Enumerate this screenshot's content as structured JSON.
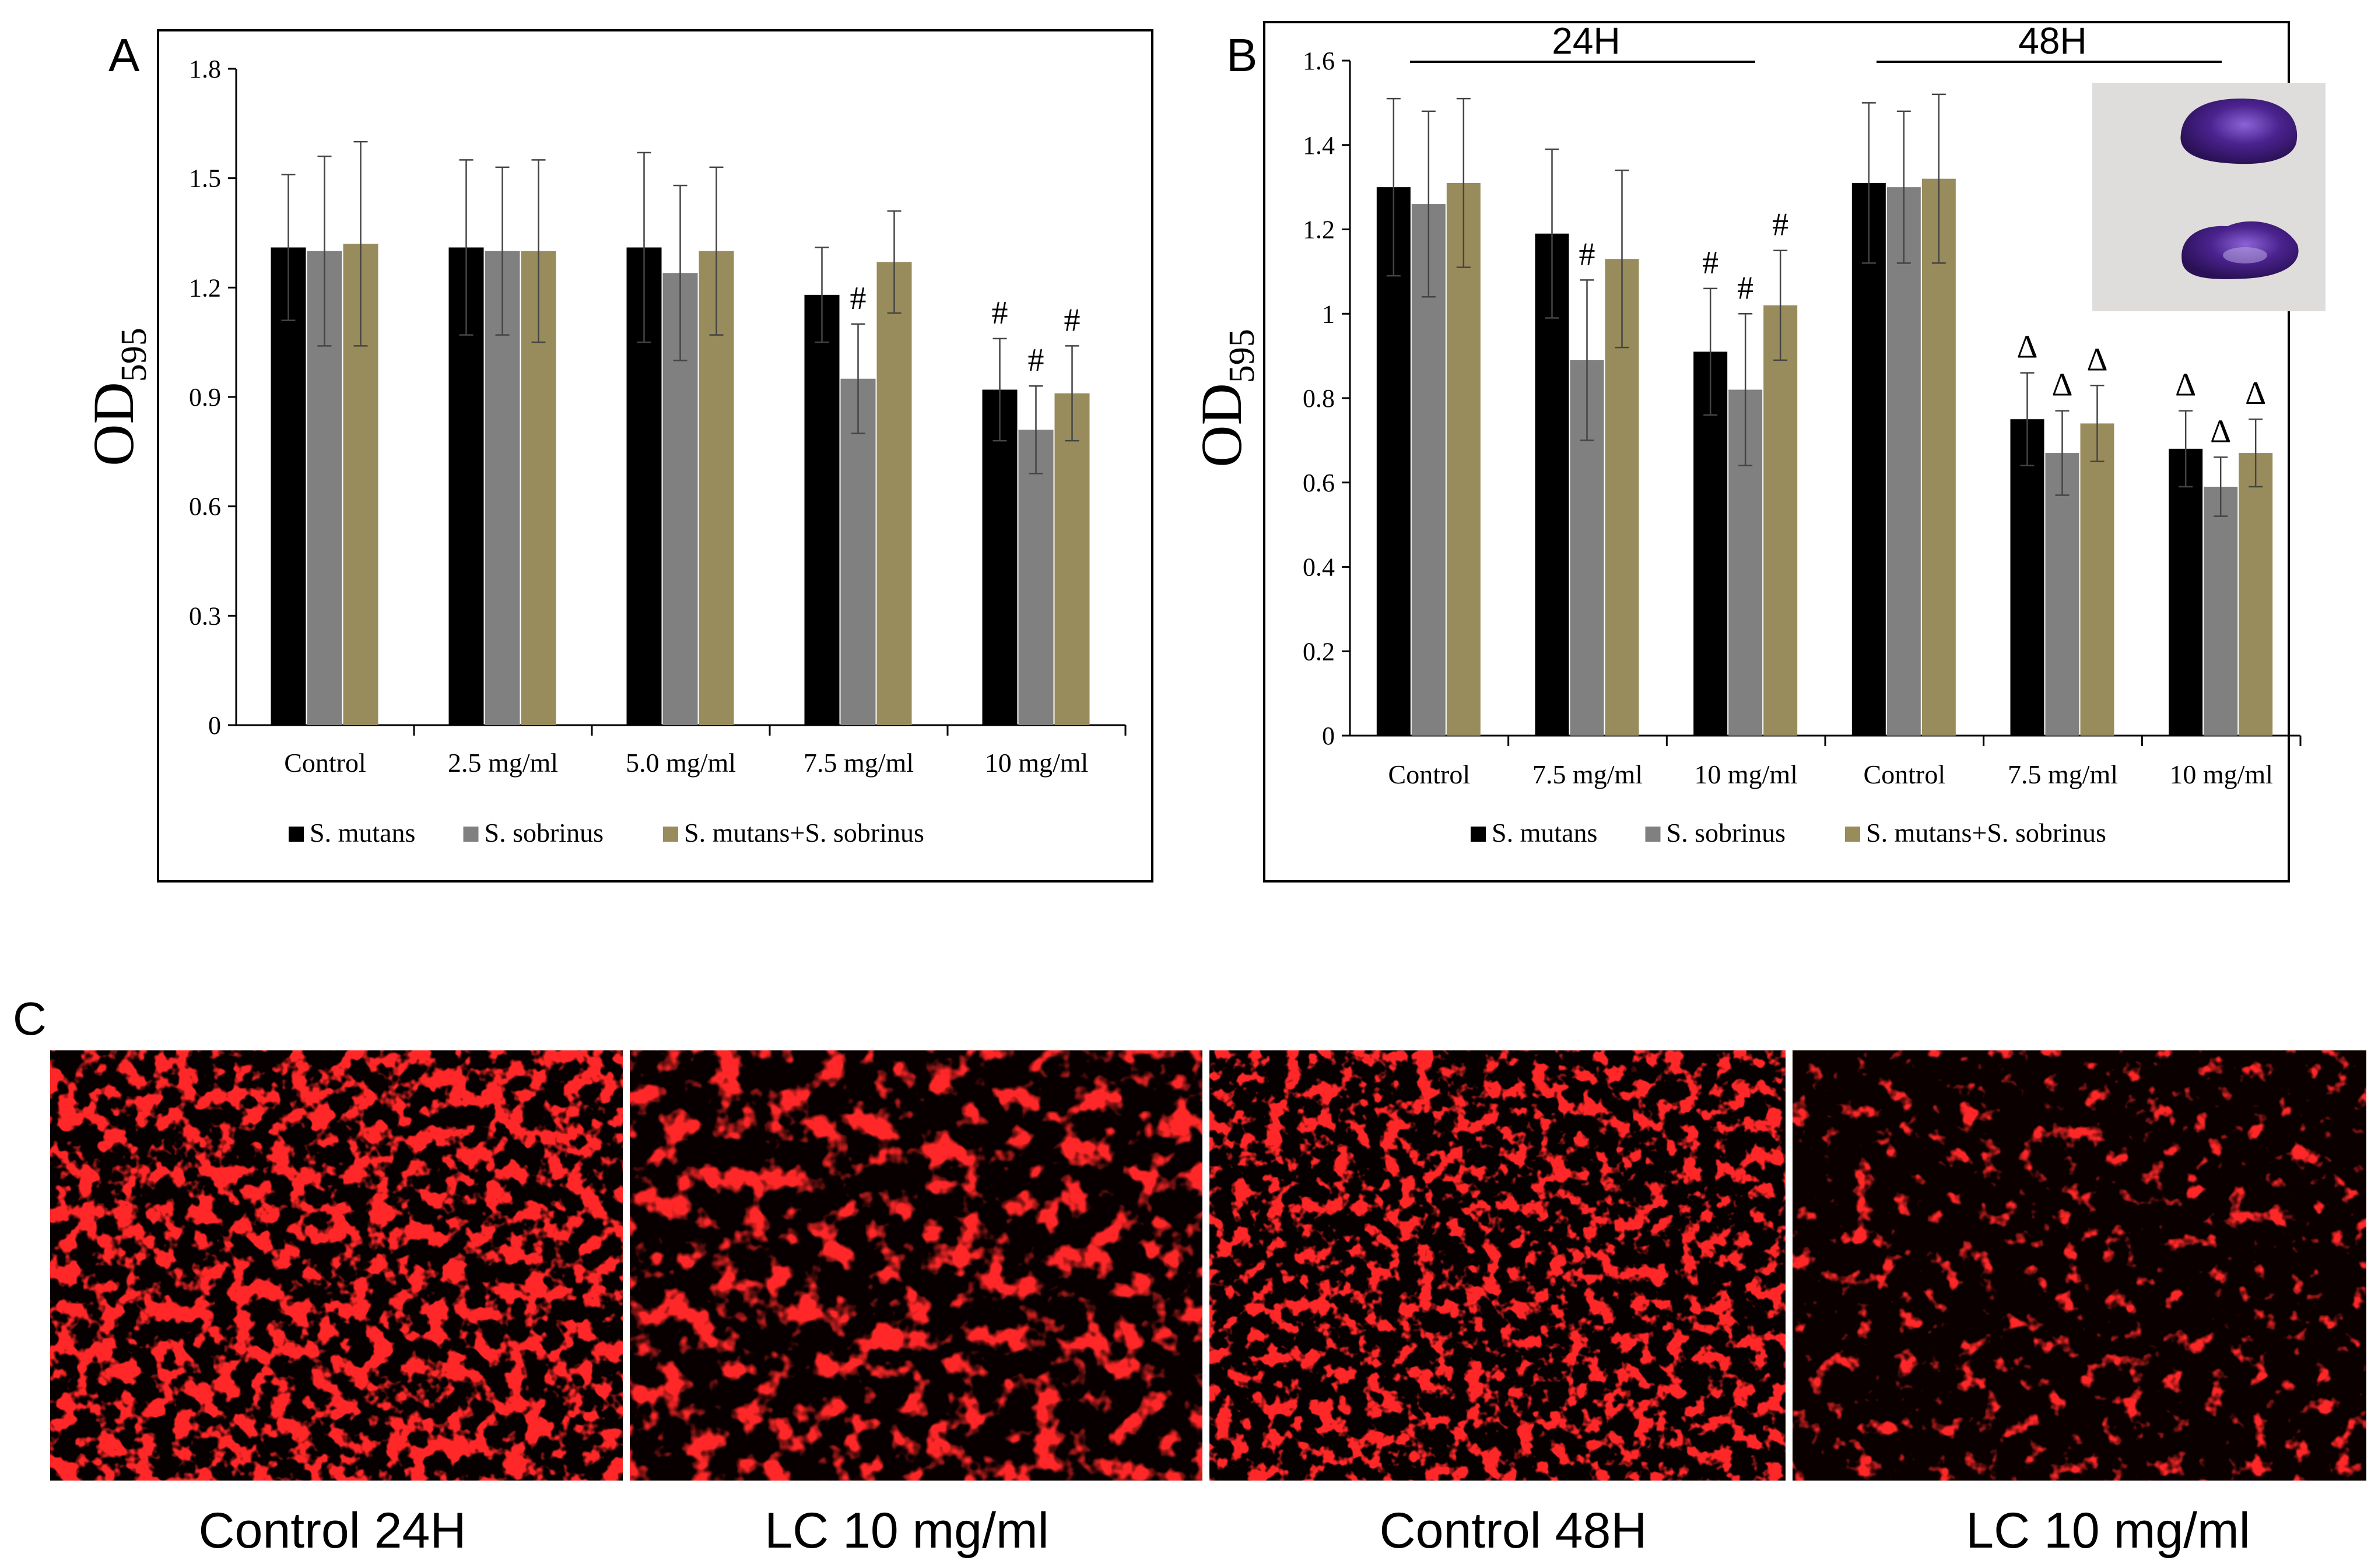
{
  "panels": {
    "A": {
      "letter": "A"
    },
    "B": {
      "letter": "B",
      "group_labels": [
        "24H",
        "48H"
      ]
    },
    "C": {
      "letter": "C",
      "captions": [
        "Control 24H",
        "LC 10 mg/ml",
        "Control 48H",
        "LC 10 mg/ml"
      ]
    }
  },
  "chart_data": [
    {
      "type": "bar",
      "panel": "A",
      "ylabel_main": "OD",
      "ylabel_sub": "595",
      "ylim": [
        0,
        1.8
      ],
      "yticks": [
        "0",
        "0.3",
        "0.6",
        "0.9",
        "1.2",
        "1.5",
        "1.8"
      ],
      "yticks_values": [
        0,
        0.3,
        0.6,
        0.9,
        1.2,
        1.5,
        1.8
      ],
      "categories": [
        "Control",
        "2.5 mg/ml",
        "5.0 mg/ml",
        "7.5 mg/ml",
        "10 mg/ml"
      ],
      "series": [
        {
          "name": "S. mutans",
          "color": "#000000",
          "values": [
            1.31,
            1.31,
            1.31,
            1.18,
            0.92
          ],
          "errors": [
            0.2,
            0.24,
            0.26,
            0.13,
            0.14
          ],
          "markers": [
            "",
            "",
            "",
            "",
            "#"
          ]
        },
        {
          "name": "S. sobrinus",
          "color": "#808080",
          "values": [
            1.3,
            1.3,
            1.24,
            0.95,
            0.81
          ],
          "errors": [
            0.26,
            0.23,
            0.24,
            0.15,
            0.12
          ],
          "markers": [
            "",
            "",
            "",
            "#",
            "#"
          ]
        },
        {
          "name": "S. mutans+S. sobrinus",
          "color": "#988c5c",
          "values": [
            1.32,
            1.3,
            1.3,
            1.27,
            0.91
          ],
          "errors": [
            0.28,
            0.25,
            0.23,
            0.14,
            0.13
          ],
          "markers": [
            "",
            "",
            "",
            "",
            "#"
          ]
        }
      ],
      "legend": "bottom"
    },
    {
      "type": "bar",
      "panel": "B",
      "ylabel_main": "OD",
      "ylabel_sub": "595",
      "ylim": [
        0,
        1.6
      ],
      "yticks": [
        "0",
        "0.2",
        "0.4",
        "0.6",
        "0.8",
        "1",
        "1.2",
        "1.4",
        "1.6"
      ],
      "yticks_values": [
        0,
        0.2,
        0.4,
        0.6,
        0.8,
        1.0,
        1.2,
        1.4,
        1.6
      ],
      "categories": [
        "Control",
        "7.5 mg/ml",
        "10 mg/ml",
        "Control",
        "7.5 mg/ml",
        "10 mg/ml"
      ],
      "series": [
        {
          "name": "S. mutans",
          "color": "#000000",
          "values": [
            1.3,
            1.19,
            0.91,
            1.31,
            0.75,
            0.68
          ],
          "errors": [
            0.21,
            0.2,
            0.15,
            0.19,
            0.11,
            0.09
          ],
          "markers": [
            "",
            "",
            "#",
            "",
            "Δ",
            "Δ"
          ]
        },
        {
          "name": "S. sobrinus",
          "color": "#808080",
          "values": [
            1.26,
            0.89,
            0.82,
            1.3,
            0.67,
            0.59
          ],
          "errors": [
            0.22,
            0.19,
            0.18,
            0.18,
            0.1,
            0.07
          ],
          "markers": [
            "",
            "#",
            "#",
            "",
            "Δ",
            "Δ"
          ]
        },
        {
          "name": "S. mutans+S. sobrinus",
          "color": "#988c5c",
          "values": [
            1.31,
            1.13,
            1.02,
            1.32,
            0.74,
            0.67
          ],
          "errors": [
            0.2,
            0.21,
            0.13,
            0.2,
            0.09,
            0.08
          ],
          "markers": [
            "",
            "",
            "#",
            "",
            "Δ",
            "Δ"
          ]
        }
      ],
      "legend": "bottom"
    }
  ]
}
